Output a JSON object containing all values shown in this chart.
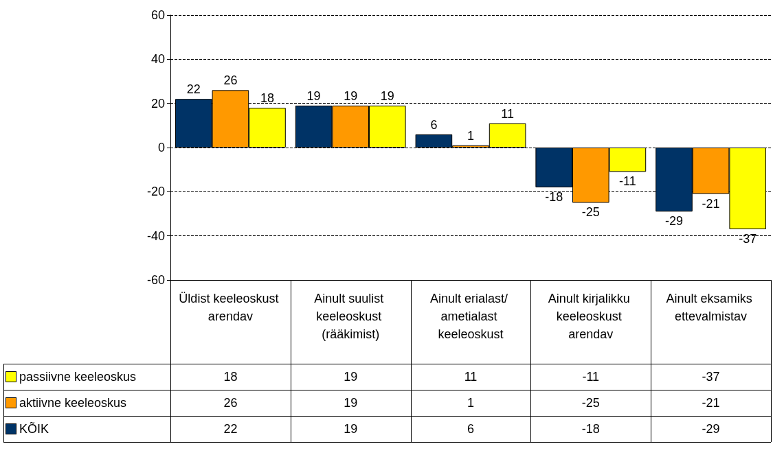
{
  "chart_data": {
    "type": "bar",
    "categories": [
      "Üldist keeleoskust arendav",
      "Ainult suulist keeleoskust (rääkimist)",
      "Ainult erialast/ ametialast keeleoskust",
      "Ainult kirjalikku keeleoskust arendav",
      "Ainult eksamiks ettevalmistav"
    ],
    "series": [
      {
        "name": "KÕIK",
        "color": "#003366",
        "values": [
          22,
          19,
          6,
          -18,
          -29
        ],
        "value_labels": [
          "22",
          "19",
          "6",
          "-18",
          "-29"
        ]
      },
      {
        "name": "aktiivne keeleoskus",
        "color": "#ff9900",
        "values": [
          26,
          19,
          1,
          -25,
          -21
        ],
        "value_labels": [
          "26",
          "19",
          "1",
          "-25",
          "-21"
        ]
      },
      {
        "name": "passiivne keeleoskus",
        "color": "#ffff00",
        "values": [
          18,
          19,
          11,
          -11,
          -37
        ],
        "value_labels": [
          "18",
          "19",
          "11",
          "-11",
          "-37"
        ]
      }
    ],
    "ylim": [
      -60,
      60
    ],
    "yticks": [
      -60,
      -40,
      -20,
      0,
      20,
      40,
      60
    ],
    "grid": "y",
    "legend": "bottom left",
    "data_labels": true
  }
}
